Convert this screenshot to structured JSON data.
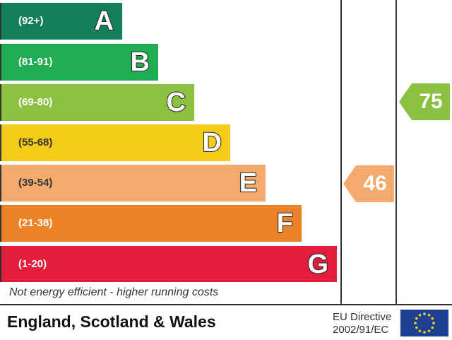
{
  "chart_data": {
    "type": "bar",
    "bands": [
      {
        "letter": "A",
        "range": "(92+)",
        "color": "#127f59"
      },
      {
        "letter": "B",
        "range": "(81-91)",
        "color": "#20ad51"
      },
      {
        "letter": "C",
        "range": "(69-80)",
        "color": "#8cc040"
      },
      {
        "letter": "D",
        "range": "(55-68)",
        "color": "#f5cb19"
      },
      {
        "letter": "E",
        "range": "(39-54)",
        "color": "#f2aa6d"
      },
      {
        "letter": "F",
        "range": "(21-38)",
        "color": "#ec8226"
      },
      {
        "letter": "G",
        "range": "(1-20)",
        "color": "#e31d3c"
      }
    ],
    "current": {
      "value": "46",
      "band": "E",
      "color": "#f2aa6d"
    },
    "potential": {
      "value": "75",
      "band": "C",
      "color": "#8cc040"
    }
  },
  "footer": {
    "note": "Not energy efficient - higher running costs",
    "region": "England, Scotland & Wales",
    "directive_line1": "EU Directive",
    "directive_line2": "2002/91/EC",
    "flag": "eu-flag-icon"
  }
}
